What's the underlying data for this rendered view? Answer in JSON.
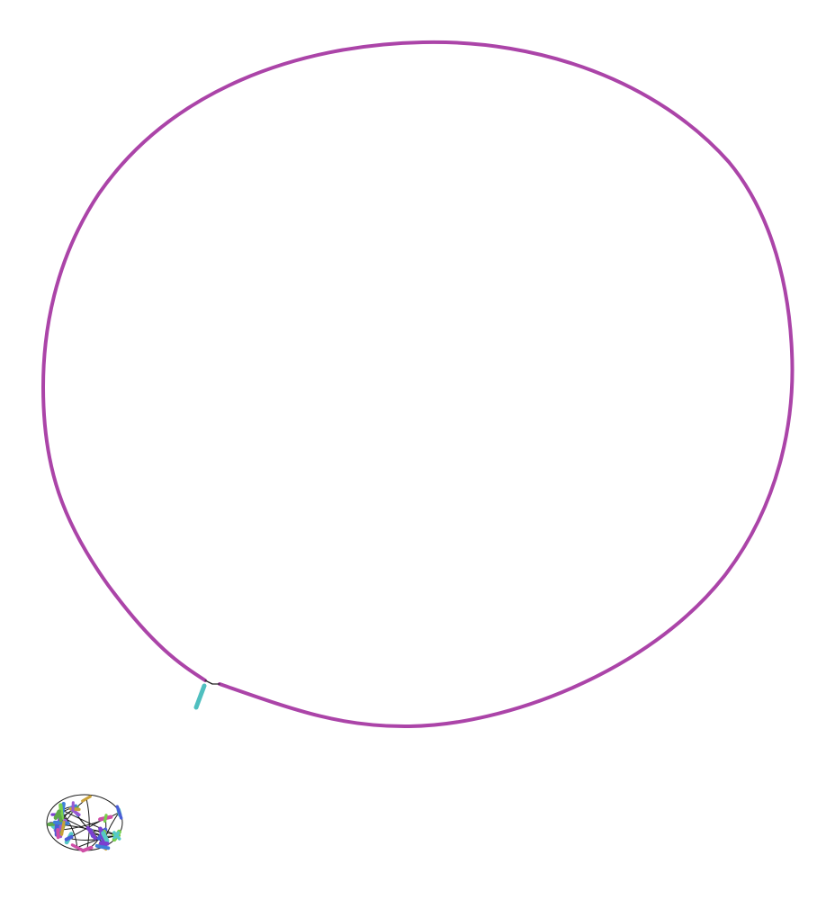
{
  "diagram": {
    "type": "assembly-graph",
    "background": "#ffffff",
    "main_component": {
      "contig_color": "#ab44a8",
      "tail_color": "#4fbfbf",
      "link_color": "#222222"
    },
    "small_tangle": {
      "colors": [
        "#7b3fd0",
        "#4a5ed6",
        "#55c8c6",
        "#7ad04c",
        "#cf4fa6",
        "#9b59d0",
        "#3f7fd8",
        "#c9a13a",
        "#5ea84a"
      ],
      "link_color": "#1a1a1a"
    }
  }
}
